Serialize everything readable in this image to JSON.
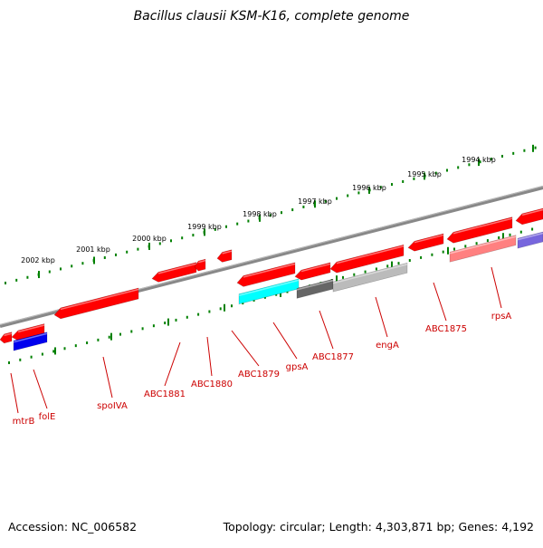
{
  "header": {
    "title": "Bacillus clausii KSM-K16, complete genome"
  },
  "footer": {
    "accession": "Accession: NC_006582",
    "summary": "Topology: circular; Length: 4,303,871 bp; Genes: 4,192"
  },
  "map": {
    "scale_labels": [
      "1994 kbp",
      "1995 kbp",
      "1996 kbp",
      "1997 kbp",
      "1998 kbp",
      "1999 kbp",
      "2000 kbp",
      "2001 kbp",
      "2002 kbp"
    ],
    "gene_labels": [
      "rpsA",
      "ABC1875",
      "engA",
      "ABC1877",
      "gpsA",
      "ABC1879",
      "ABC1880",
      "ABC1881",
      "spoIVA",
      "folE",
      "mtrB"
    ],
    "colors": {
      "gene_red": "#ff0000",
      "gene_blue": "#0000ee",
      "gene_cyan": "#00ffff",
      "gene_dark_gray": "#666666",
      "gene_light_gray": "#bbbbbb",
      "gene_pink": "#ff8080",
      "gene_purple": "#7766dd",
      "backbone": "#888888",
      "tick_green": "#008000",
      "label_red": "#cc0000"
    }
  }
}
